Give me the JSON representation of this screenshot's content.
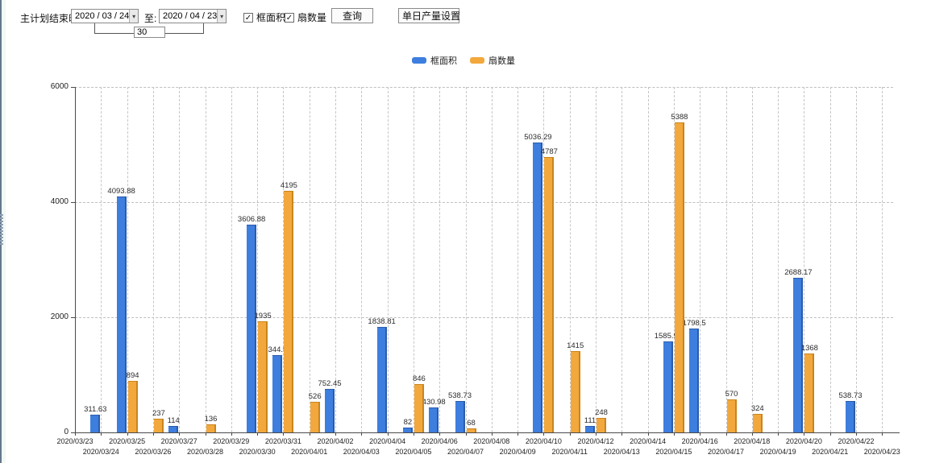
{
  "toolbar": {
    "label": "主计划结束时间:",
    "date_from": "2020 / 03 / 24",
    "to_label": "至:",
    "date_to": "2020 / 04 / 23",
    "days_value": "30",
    "checkbox_frame_area": "框面积",
    "checkbox_fan_count": "扇数量",
    "query_button": "查询",
    "daily_output_button": "单日产量设置"
  },
  "icons": {
    "dropdown": "▾",
    "check": "✓"
  },
  "colors": {
    "bar_blue": "#3d7ede",
    "bar_blue_edge": "#2c5cab",
    "bar_orange": "#f2a83c",
    "bar_orange_edge": "#c9851d",
    "grid": "#c6c6c6",
    "axis": "#4a4a4a"
  },
  "chart_data": {
    "type": "bar",
    "title": "",
    "xlabel": "",
    "ylabel": "",
    "ylim": [
      0,
      6000
    ],
    "yticks": [
      0,
      2000,
      4000,
      6000
    ],
    "grid": true,
    "legend_position": "top-center",
    "categories": [
      "2020/03/23",
      "2020/03/24",
      "2020/03/25",
      "2020/03/26",
      "2020/03/27",
      "2020/03/28",
      "2020/03/29",
      "2020/03/30",
      "2020/03/31",
      "2020/04/01",
      "2020/04/02",
      "2020/04/03",
      "2020/04/04",
      "2020/04/05",
      "2020/04/06",
      "2020/04/07",
      "2020/04/08",
      "2020/04/09",
      "2020/04/10",
      "2020/04/11",
      "2020/04/12",
      "2020/04/13",
      "2020/04/14",
      "2020/04/15",
      "2020/04/16",
      "2020/04/17",
      "2020/04/18",
      "2020/04/19",
      "2020/04/20",
      "2020/04/21",
      "2020/04/22",
      "2020/04/23"
    ],
    "series": [
      {
        "name": "框面积",
        "color": "#3d7ede",
        "edge": "#2c5cab",
        "values": [
          null,
          311.63,
          4093.88,
          null,
          114,
          null,
          null,
          3606.88,
          1344.95,
          null,
          752.45,
          null,
          1838.81,
          82,
          430.98,
          538.73,
          null,
          null,
          5036.29,
          null,
          111,
          null,
          null,
          1585.96,
          1798.5,
          null,
          null,
          null,
          2688.17,
          null,
          538.73,
          null
        ]
      },
      {
        "name": "扇数量",
        "color": "#f2a83c",
        "edge": "#c9851d",
        "values": [
          null,
          null,
          894,
          237,
          null,
          136,
          null,
          1935,
          4195,
          526,
          null,
          null,
          null,
          846,
          null,
          68,
          null,
          null,
          4787,
          1415,
          248,
          null,
          null,
          5388,
          null,
          570,
          324,
          null,
          1368,
          null,
          null,
          null
        ]
      }
    ]
  }
}
